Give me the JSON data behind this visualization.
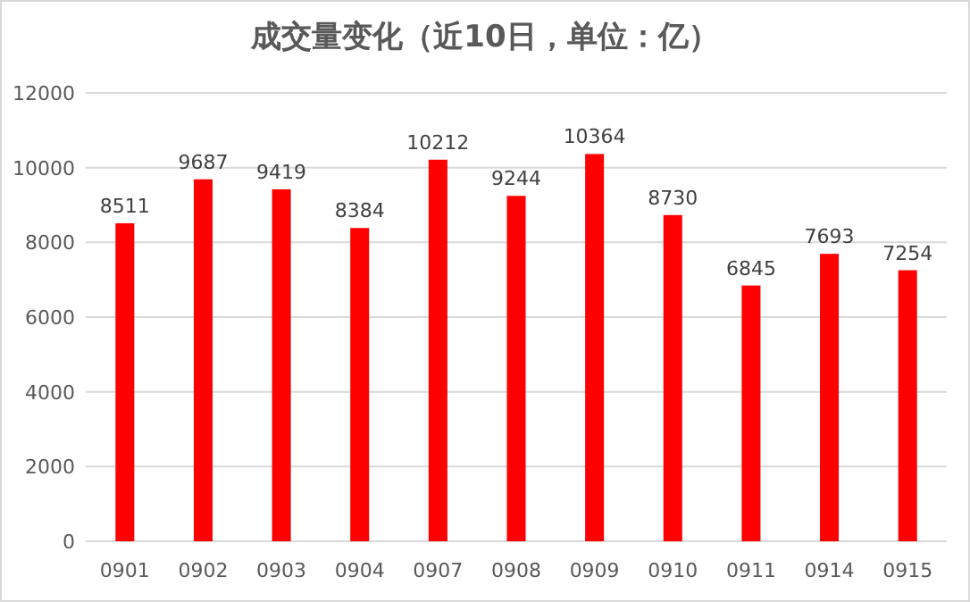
{
  "chart_data": {
    "type": "bar",
    "title": "成交量变化（近10日，单位：亿）",
    "categories": [
      "0901",
      "0902",
      "0903",
      "0904",
      "0907",
      "0908",
      "0909",
      "0910",
      "0911",
      "0914",
      "0915"
    ],
    "values": [
      8511,
      9687,
      9419,
      8384,
      10212,
      9244,
      10364,
      8730,
      6845,
      7693,
      7254
    ],
    "color": "#ff0000",
    "ylim": [
      0,
      12000
    ],
    "yticks": [
      0,
      2000,
      4000,
      6000,
      8000,
      10000,
      12000
    ],
    "grid": "y",
    "data_labels": true
  }
}
